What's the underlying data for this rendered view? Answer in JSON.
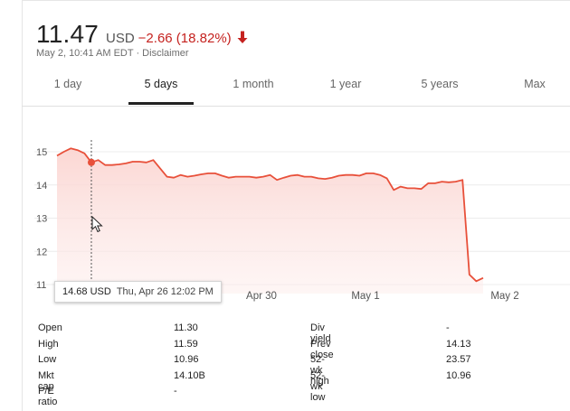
{
  "price": {
    "value": "11.47",
    "currency": "USD",
    "change": "−2.66 (18.82%)",
    "direction": "down",
    "change_color": "#c5221f"
  },
  "subline": "May 2, 10:41 AM EDT · Disclaimer",
  "tabs": [
    {
      "label": "1 day",
      "active": false
    },
    {
      "label": "5 days",
      "active": true
    },
    {
      "label": "1 month",
      "active": false
    },
    {
      "label": "1 year",
      "active": false
    },
    {
      "label": "5 years",
      "active": false
    },
    {
      "label": "Max",
      "active": false
    }
  ],
  "tooltip": {
    "price": "14.68 USD",
    "date": "Thu, Apr 26 12:02 PM"
  },
  "chart_data": {
    "type": "area",
    "ylim": [
      11,
      15.3
    ],
    "y_ticks": [
      "15",
      "14",
      "13",
      "12",
      "11"
    ],
    "x_tick_labels": [
      "Apr 30",
      "May 1",
      "May 2"
    ],
    "line_color": "#e8503a",
    "fill_color": "#fde3e1",
    "grid": true,
    "series": [
      {
        "values": [
          14.88,
          15.0,
          15.1,
          15.05,
          14.95,
          14.68,
          14.75,
          14.6,
          14.6,
          14.62,
          14.65,
          14.7,
          14.7,
          14.68,
          14.75,
          14.5,
          14.25,
          14.22,
          14.3,
          14.25,
          14.28,
          14.32,
          14.35,
          14.35,
          14.28,
          14.22,
          14.25,
          14.25,
          14.25,
          14.22,
          14.25,
          14.3,
          14.15,
          14.22,
          14.28,
          14.3,
          14.25,
          14.25,
          14.2,
          14.18,
          14.22,
          14.28,
          14.3,
          14.3,
          14.28,
          14.35,
          14.35,
          14.3,
          14.2,
          13.85,
          13.95,
          13.9,
          13.9,
          13.88,
          14.05,
          14.05,
          14.1,
          14.08,
          14.1,
          14.15,
          11.3,
          11.1,
          11.2
        ]
      }
    ],
    "highlight": {
      "price": 14.68,
      "date": "Thu, Apr 26 12:02 PM"
    }
  },
  "stats": {
    "left": [
      {
        "label": "Open",
        "value": "11.30"
      },
      {
        "label": "High",
        "value": "11.59"
      },
      {
        "label": "Low",
        "value": "10.96"
      },
      {
        "label": "Mkt cap",
        "value": "14.10B"
      },
      {
        "label": "P/E ratio",
        "value": "-"
      }
    ],
    "right": [
      {
        "label": "Div yield",
        "value": "-"
      },
      {
        "label": "Prev close",
        "value": "14.13"
      },
      {
        "label": "52-wk high",
        "value": "23.57"
      },
      {
        "label": "52-wk low",
        "value": "10.96"
      }
    ]
  }
}
